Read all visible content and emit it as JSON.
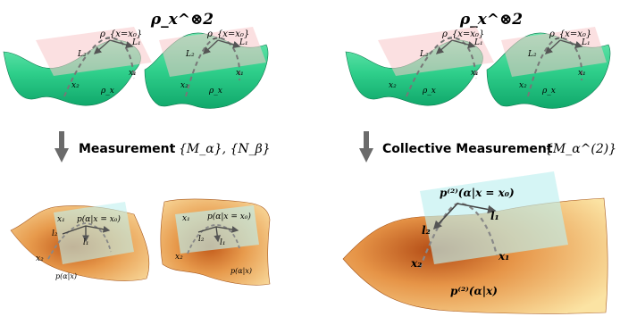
{
  "left": {
    "title": "ρ_x^⊗2",
    "surfaces": [
      {
        "rho_label": "ρ_{x=x₀}",
        "tangent_L1": "L₁",
        "tangent_L2": "L₂",
        "axis_x1": "x₁",
        "axis_x2": "x₂",
        "bottom_label": "ρ_x"
      },
      {
        "rho_label": "ρ_{x=x₀}",
        "tangent_L1": "L₁",
        "tangent_L2": "L₂",
        "axis_x1": "x₁",
        "axis_x2": "x₂",
        "bottom_label": "ρ_x"
      }
    ],
    "step_label": "Measurement",
    "step_math": "{M_α}, {N_β}",
    "outputs": [
      {
        "peak_label": "p(α|x = x₀)",
        "x1": "x₁",
        "x2": "x₂",
        "l1": "l₁",
        "l2": "l₂",
        "bottom_label": "p(α|x)"
      },
      {
        "peak_label": "p(α|x = x₀)",
        "x1": "x₁",
        "x2": "x₂",
        "l1": "l₁",
        "l2": "l₂",
        "bottom_label": "p(α|x)"
      }
    ]
  },
  "right": {
    "title": "ρ_x^⊗2",
    "surfaces": [
      {
        "rho_label": "ρ_{x=x₀}",
        "tangent_L1": "L₁",
        "tangent_L2": "L₂",
        "axis_x1": "x₁",
        "axis_x2": "x₂",
        "bottom_label": "ρ_x"
      },
      {
        "rho_label": "ρ_{x=x₀}",
        "tangent_L1": "L₁",
        "tangent_L2": "L₂",
        "axis_x1": "x₁",
        "axis_x2": "x₂",
        "bottom_label": "ρ_x"
      }
    ],
    "step_label": "Collective Measurement",
    "step_math": "{M_α^(2)}",
    "output": {
      "peak_label": "p⁽²⁾(α|x = x₀)",
      "x1": "x₁",
      "x2": "x₂",
      "l1": "l₁",
      "l2": "l₂",
      "bottom_label": "p⁽²⁾(α|x)"
    }
  },
  "colors": {
    "green_surface": "#33cc8c",
    "pink_plane": "#f7c6c8",
    "cyan_plane": "#bff0ef",
    "orange_surface": "#e9a455",
    "arrow_gray": "#6b6b6b"
  }
}
